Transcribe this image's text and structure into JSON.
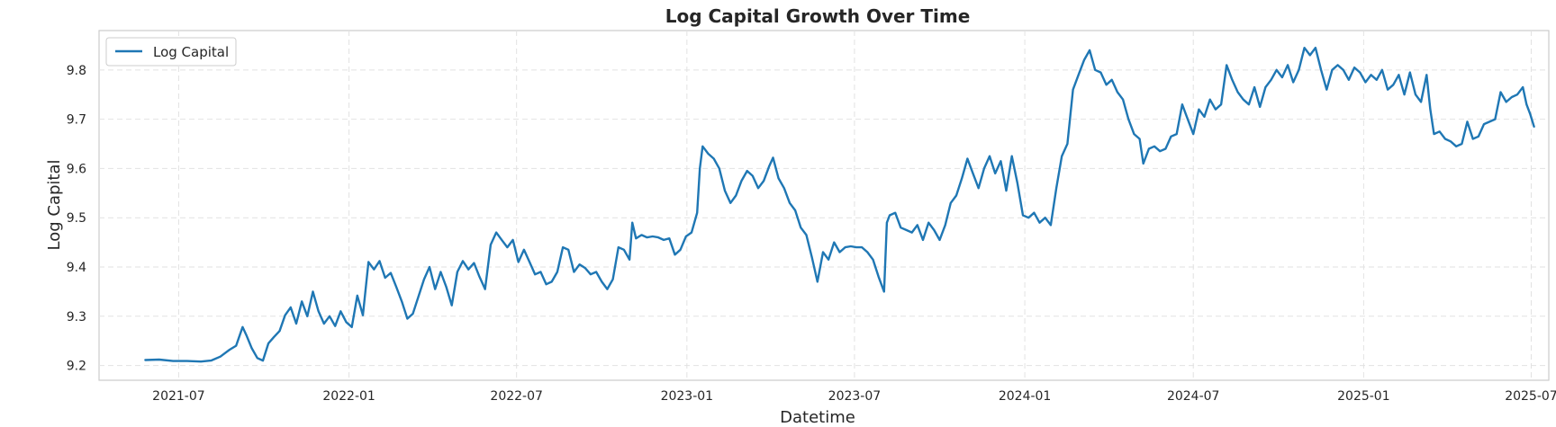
{
  "chart_data": {
    "type": "line",
    "title": "Log Capital Growth Over Time",
    "xlabel": "Datetime",
    "ylabel": "Log Capital",
    "xlim": [
      "2021-04-06",
      "2025-07-20"
    ],
    "ylim": [
      9.17,
      9.88
    ],
    "x_ticks": [
      "2021-07",
      "2022-01",
      "2022-07",
      "2023-01",
      "2023-07",
      "2024-01",
      "2024-07",
      "2025-01",
      "2025-07"
    ],
    "y_ticks": [
      9.2,
      9.3,
      9.4,
      9.5,
      9.6,
      9.7,
      9.8
    ],
    "grid": true,
    "legend_position": "top-left",
    "color": "#1f77b4",
    "series": [
      {
        "name": "Log Capital",
        "points": [
          [
            "2021-05-26",
            9.211
          ],
          [
            "2021-06-10",
            9.212
          ],
          [
            "2021-06-25",
            9.209
          ],
          [
            "2021-07-10",
            9.209
          ],
          [
            "2021-07-25",
            9.208
          ],
          [
            "2021-08-05",
            9.21
          ],
          [
            "2021-08-15",
            9.218
          ],
          [
            "2021-08-25",
            9.232
          ],
          [
            "2021-09-01",
            9.24
          ],
          [
            "2021-09-08",
            9.278
          ],
          [
            "2021-09-12",
            9.262
          ],
          [
            "2021-09-18",
            9.235
          ],
          [
            "2021-09-24",
            9.215
          ],
          [
            "2021-09-30",
            9.21
          ],
          [
            "2021-10-06",
            9.245
          ],
          [
            "2021-10-12",
            9.258
          ],
          [
            "2021-10-18",
            9.27
          ],
          [
            "2021-10-24",
            9.302
          ],
          [
            "2021-10-30",
            9.318
          ],
          [
            "2021-11-05",
            9.285
          ],
          [
            "2021-11-11",
            9.33
          ],
          [
            "2021-11-17",
            9.3
          ],
          [
            "2021-11-23",
            9.35
          ],
          [
            "2021-11-29",
            9.31
          ],
          [
            "2021-12-05",
            9.285
          ],
          [
            "2021-12-11",
            9.3
          ],
          [
            "2021-12-17",
            9.28
          ],
          [
            "2021-12-23",
            9.31
          ],
          [
            "2021-12-29",
            9.288
          ],
          [
            "2022-01-04",
            9.278
          ],
          [
            "2022-01-10",
            9.342
          ],
          [
            "2022-01-16",
            9.302
          ],
          [
            "2022-01-22",
            9.41
          ],
          [
            "2022-01-28",
            9.395
          ],
          [
            "2022-02-03",
            9.412
          ],
          [
            "2022-02-09",
            9.378
          ],
          [
            "2022-02-15",
            9.388
          ],
          [
            "2022-02-21",
            9.36
          ],
          [
            "2022-02-27",
            9.33
          ],
          [
            "2022-03-05",
            9.295
          ],
          [
            "2022-03-11",
            9.305
          ],
          [
            "2022-03-17",
            9.34
          ],
          [
            "2022-03-23",
            9.375
          ],
          [
            "2022-03-29",
            9.4
          ],
          [
            "2022-04-04",
            9.355
          ],
          [
            "2022-04-10",
            9.39
          ],
          [
            "2022-04-16",
            9.36
          ],
          [
            "2022-04-22",
            9.322
          ],
          [
            "2022-04-28",
            9.39
          ],
          [
            "2022-05-04",
            9.412
          ],
          [
            "2022-05-10",
            9.395
          ],
          [
            "2022-05-16",
            9.408
          ],
          [
            "2022-05-22",
            9.38
          ],
          [
            "2022-05-28",
            9.355
          ],
          [
            "2022-06-03",
            9.445
          ],
          [
            "2022-06-09",
            9.47
          ],
          [
            "2022-06-15",
            9.455
          ],
          [
            "2022-06-21",
            9.44
          ],
          [
            "2022-06-27",
            9.455
          ],
          [
            "2022-07-03",
            9.41
          ],
          [
            "2022-07-09",
            9.435
          ],
          [
            "2022-07-15",
            9.41
          ],
          [
            "2022-07-21",
            9.385
          ],
          [
            "2022-07-27",
            9.39
          ],
          [
            "2022-08-02",
            9.365
          ],
          [
            "2022-08-08",
            9.37
          ],
          [
            "2022-08-14",
            9.39
          ],
          [
            "2022-08-20",
            9.44
          ],
          [
            "2022-08-26",
            9.435
          ],
          [
            "2022-09-01",
            9.39
          ],
          [
            "2022-09-07",
            9.405
          ],
          [
            "2022-09-13",
            9.398
          ],
          [
            "2022-09-19",
            9.385
          ],
          [
            "2022-09-25",
            9.39
          ],
          [
            "2022-10-01",
            9.37
          ],
          [
            "2022-10-07",
            9.355
          ],
          [
            "2022-10-13",
            9.375
          ],
          [
            "2022-10-19",
            9.44
          ],
          [
            "2022-10-25",
            9.435
          ],
          [
            "2022-10-31",
            9.415
          ],
          [
            "2022-11-03",
            9.49
          ],
          [
            "2022-11-07",
            9.458
          ],
          [
            "2022-11-13",
            9.465
          ],
          [
            "2022-11-19",
            9.46
          ],
          [
            "2022-11-25",
            9.462
          ],
          [
            "2022-12-01",
            9.46
          ],
          [
            "2022-12-07",
            9.455
          ],
          [
            "2022-12-13",
            9.458
          ],
          [
            "2022-12-19",
            9.425
          ],
          [
            "2022-12-25",
            9.435
          ],
          [
            "2022-12-31",
            9.462
          ],
          [
            "2023-01-06",
            9.47
          ],
          [
            "2023-01-12",
            9.51
          ],
          [
            "2023-01-15",
            9.6
          ],
          [
            "2023-01-18",
            9.645
          ],
          [
            "2023-01-24",
            9.63
          ],
          [
            "2023-01-30",
            9.62
          ],
          [
            "2023-02-05",
            9.6
          ],
          [
            "2023-02-11",
            9.555
          ],
          [
            "2023-02-17",
            9.53
          ],
          [
            "2023-02-23",
            9.545
          ],
          [
            "2023-03-01",
            9.575
          ],
          [
            "2023-03-07",
            9.595
          ],
          [
            "2023-03-13",
            9.585
          ],
          [
            "2023-03-19",
            9.56
          ],
          [
            "2023-03-25",
            9.575
          ],
          [
            "2023-03-31",
            9.605
          ],
          [
            "2023-04-04",
            9.622
          ],
          [
            "2023-04-10",
            9.58
          ],
          [
            "2023-04-16",
            9.56
          ],
          [
            "2023-04-22",
            9.53
          ],
          [
            "2023-04-28",
            9.515
          ],
          [
            "2023-05-04",
            9.48
          ],
          [
            "2023-05-10",
            9.465
          ],
          [
            "2023-05-16",
            9.42
          ],
          [
            "2023-05-22",
            9.37
          ],
          [
            "2023-05-28",
            9.43
          ],
          [
            "2023-06-03",
            9.415
          ],
          [
            "2023-06-09",
            9.45
          ],
          [
            "2023-06-15",
            9.43
          ],
          [
            "2023-06-21",
            9.44
          ],
          [
            "2023-06-27",
            9.442
          ],
          [
            "2023-07-03",
            9.44
          ],
          [
            "2023-07-09",
            9.44
          ],
          [
            "2023-07-15",
            9.43
          ],
          [
            "2023-07-21",
            9.415
          ],
          [
            "2023-07-27",
            9.38
          ],
          [
            "2023-08-02",
            9.35
          ],
          [
            "2023-08-05",
            9.49
          ],
          [
            "2023-08-08",
            9.505
          ],
          [
            "2023-08-14",
            9.51
          ],
          [
            "2023-08-20",
            9.48
          ],
          [
            "2023-08-26",
            9.475
          ],
          [
            "2023-09-01",
            9.47
          ],
          [
            "2023-09-07",
            9.485
          ],
          [
            "2023-09-13",
            9.455
          ],
          [
            "2023-09-19",
            9.49
          ],
          [
            "2023-09-25",
            9.475
          ],
          [
            "2023-10-01",
            9.455
          ],
          [
            "2023-10-07",
            9.485
          ],
          [
            "2023-10-13",
            9.53
          ],
          [
            "2023-10-19",
            9.545
          ],
          [
            "2023-10-25",
            9.58
          ],
          [
            "2023-10-31",
            9.62
          ],
          [
            "2023-11-06",
            9.59
          ],
          [
            "2023-11-12",
            9.56
          ],
          [
            "2023-11-18",
            9.6
          ],
          [
            "2023-11-24",
            9.625
          ],
          [
            "2023-11-30",
            9.59
          ],
          [
            "2023-12-06",
            9.615
          ],
          [
            "2023-12-12",
            9.555
          ],
          [
            "2023-12-18",
            9.625
          ],
          [
            "2023-12-24",
            9.57
          ],
          [
            "2023-12-30",
            9.505
          ],
          [
            "2024-01-05",
            9.5
          ],
          [
            "2024-01-11",
            9.51
          ],
          [
            "2024-01-17",
            9.49
          ],
          [
            "2024-01-23",
            9.5
          ],
          [
            "2024-01-29",
            9.485
          ],
          [
            "2024-02-04",
            9.56
          ],
          [
            "2024-02-10",
            9.625
          ],
          [
            "2024-02-16",
            9.65
          ],
          [
            "2024-02-22",
            9.76
          ],
          [
            "2024-02-28",
            9.79
          ],
          [
            "2024-03-05",
            9.82
          ],
          [
            "2024-03-11",
            9.84
          ],
          [
            "2024-03-17",
            9.8
          ],
          [
            "2024-03-23",
            9.795
          ],
          [
            "2024-03-29",
            9.77
          ],
          [
            "2024-04-04",
            9.78
          ],
          [
            "2024-04-10",
            9.755
          ],
          [
            "2024-04-16",
            9.74
          ],
          [
            "2024-04-22",
            9.7
          ],
          [
            "2024-04-28",
            9.67
          ],
          [
            "2024-05-04",
            9.66
          ],
          [
            "2024-05-08",
            9.61
          ],
          [
            "2024-05-14",
            9.64
          ],
          [
            "2024-05-20",
            9.645
          ],
          [
            "2024-05-26",
            9.635
          ],
          [
            "2024-06-01",
            9.64
          ],
          [
            "2024-06-07",
            9.665
          ],
          [
            "2024-06-13",
            9.67
          ],
          [
            "2024-06-19",
            9.73
          ],
          [
            "2024-06-25",
            9.7
          ],
          [
            "2024-07-01",
            9.67
          ],
          [
            "2024-07-07",
            9.72
          ],
          [
            "2024-07-13",
            9.705
          ],
          [
            "2024-07-19",
            9.74
          ],
          [
            "2024-07-25",
            9.72
          ],
          [
            "2024-07-31",
            9.73
          ],
          [
            "2024-08-06",
            9.81
          ],
          [
            "2024-08-12",
            9.78
          ],
          [
            "2024-08-18",
            9.755
          ],
          [
            "2024-08-24",
            9.74
          ],
          [
            "2024-08-30",
            9.73
          ],
          [
            "2024-09-05",
            9.765
          ],
          [
            "2024-09-11",
            9.725
          ],
          [
            "2024-09-17",
            9.765
          ],
          [
            "2024-09-23",
            9.78
          ],
          [
            "2024-09-29",
            9.8
          ],
          [
            "2024-10-05",
            9.785
          ],
          [
            "2024-10-11",
            9.81
          ],
          [
            "2024-10-17",
            9.775
          ],
          [
            "2024-10-23",
            9.8
          ],
          [
            "2024-10-29",
            9.845
          ],
          [
            "2024-11-04",
            9.83
          ],
          [
            "2024-11-10",
            9.845
          ],
          [
            "2024-11-16",
            9.8
          ],
          [
            "2024-11-22",
            9.76
          ],
          [
            "2024-11-28",
            9.8
          ],
          [
            "2024-12-04",
            9.81
          ],
          [
            "2024-12-10",
            9.8
          ],
          [
            "2024-12-16",
            9.78
          ],
          [
            "2024-12-22",
            9.805
          ],
          [
            "2024-12-28",
            9.795
          ],
          [
            "2025-01-03",
            9.775
          ],
          [
            "2025-01-09",
            9.79
          ],
          [
            "2025-01-15",
            9.78
          ],
          [
            "2025-01-21",
            9.8
          ],
          [
            "2025-01-27",
            9.76
          ],
          [
            "2025-02-02",
            9.77
          ],
          [
            "2025-02-08",
            9.79
          ],
          [
            "2025-02-14",
            9.75
          ],
          [
            "2025-02-20",
            9.795
          ],
          [
            "2025-02-26",
            9.75
          ],
          [
            "2025-03-04",
            9.735
          ],
          [
            "2025-03-10",
            9.79
          ],
          [
            "2025-03-14",
            9.72
          ],
          [
            "2025-03-18",
            9.67
          ],
          [
            "2025-03-24",
            9.675
          ],
          [
            "2025-03-30",
            9.66
          ],
          [
            "2025-04-05",
            9.655
          ],
          [
            "2025-04-11",
            9.645
          ],
          [
            "2025-04-17",
            9.65
          ],
          [
            "2025-04-23",
            9.695
          ],
          [
            "2025-04-29",
            9.66
          ],
          [
            "2025-05-05",
            9.665
          ],
          [
            "2025-05-11",
            9.69
          ],
          [
            "2025-05-17",
            9.695
          ],
          [
            "2025-05-23",
            9.7
          ],
          [
            "2025-05-29",
            9.755
          ],
          [
            "2025-06-04",
            9.735
          ],
          [
            "2025-06-10",
            9.745
          ],
          [
            "2025-06-16",
            9.75
          ],
          [
            "2025-06-22",
            9.765
          ],
          [
            "2025-06-26",
            9.73
          ],
          [
            "2025-06-30",
            9.71
          ],
          [
            "2025-07-04",
            9.685
          ]
        ]
      }
    ]
  }
}
